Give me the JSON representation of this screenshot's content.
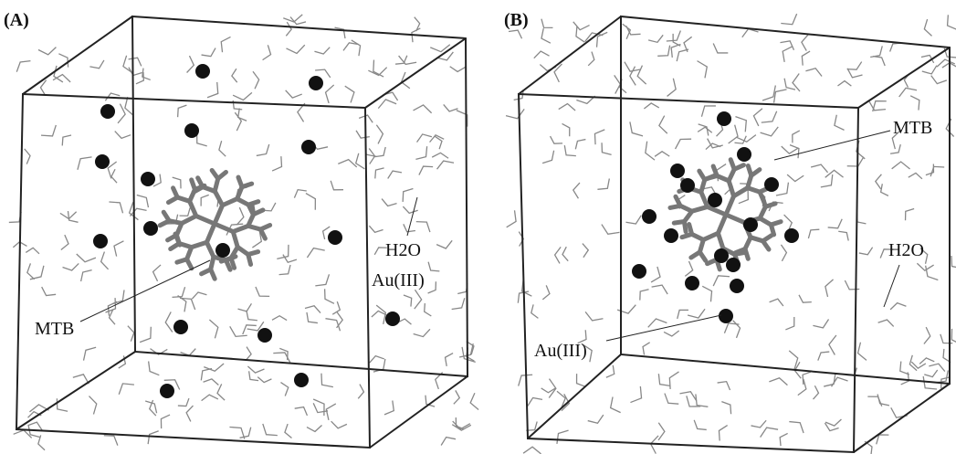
{
  "panels": [
    {
      "label": "(A)",
      "annotations": [
        "H2O",
        "Au(III)",
        "MTB"
      ]
    },
    {
      "label": "(B)",
      "annotations": [
        "MTB",
        "H2O",
        "Au(III)"
      ]
    }
  ]
}
